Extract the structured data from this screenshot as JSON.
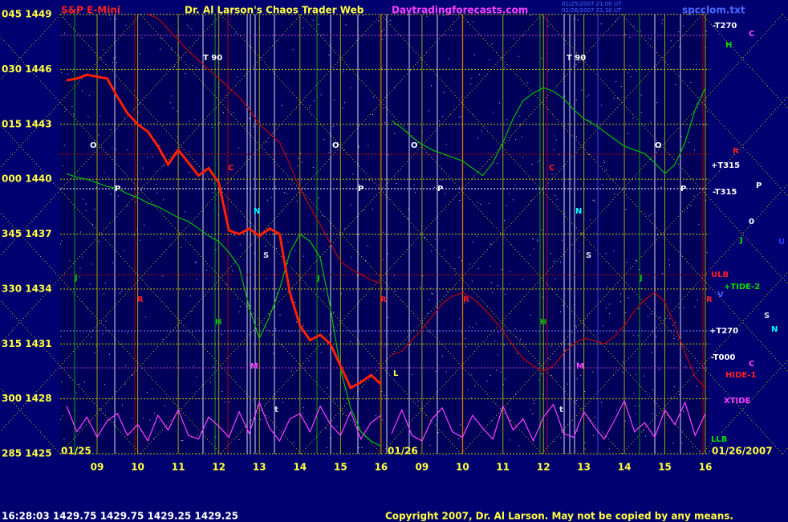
{
  "header": {
    "title": "Dr. Al Larson's Chaos Trader Web",
    "site": "Daytradingforecasts.com",
    "file": "spcclom.txt",
    "stamps": [
      "01/25/2007 21:00 UT",
      "01/26/2007 21:30 UT"
    ]
  },
  "status": "16:28:03  1429.75  1429.75  1429.25  1429.25",
  "copyright": "Copyright 2007, Dr. Al Larson. May not be copied by any means.",
  "right_labels": [
    "-T270",
    "C",
    "H",
    "R",
    "+T315",
    "-T315",
    "P",
    "0",
    "J",
    "U",
    "ULB",
    "+TIDE-2",
    "V",
    "S",
    "N",
    "+T270",
    "-T000",
    "C",
    "HIDE-1",
    "XTIDE",
    "LLB"
  ],
  "chart_data": [
    {
      "type": "line",
      "title": "S&P E-Mini",
      "date": "01/25",
      "x": [
        8.25,
        8.5,
        8.75,
        9,
        9.25,
        9.5,
        9.75,
        10,
        10.25,
        10.5,
        10.75,
        11,
        11.25,
        11.5,
        11.75,
        12,
        12.25,
        12.5,
        12.75,
        13,
        13.25,
        13.5,
        13.75,
        14,
        14.25,
        14.5,
        14.75,
        15,
        15.25,
        15.5,
        15.75,
        16
      ],
      "xlim": [
        8.09,
        16.14
      ],
      "xticks": [
        {
          "value": 9,
          "label": "09"
        },
        10,
        11,
        12,
        13,
        14,
        15,
        16
      ],
      "ylim": [
        1425,
        1449
      ],
      "yticks": [
        {
          "value": 1425,
          "label": "285 1425"
        },
        {
          "value": 1428,
          "label": "300 1428"
        },
        {
          "value": 1431,
          "label": "315 1431"
        },
        {
          "value": 1434,
          "label": "330 1434"
        },
        {
          "value": 1437,
          "label": "345 1437"
        },
        {
          "value": 1440,
          "label": "000 1440"
        },
        {
          "value": 1443,
          "label": "015 1443"
        },
        {
          "value": 1446,
          "label": "030 1446"
        },
        {
          "value": 1449,
          "label": "045 1449"
        }
      ],
      "grid": true,
      "annotations": [
        "T 90",
        "O",
        "P",
        "C",
        "N",
        "S",
        "J",
        "R",
        "H",
        "M",
        "t",
        "J",
        "O",
        "P",
        "R"
      ],
      "series": [
        {
          "color": "#00c000",
          "values": [
            1440.3,
            1440.1,
            1440.0,
            1439.8,
            1439.6,
            1439.5,
            1439.2,
            1439.0,
            1438.7,
            1438.5,
            1438.2,
            1437.9,
            1437.7,
            1437.3,
            1436.9,
            1436.6,
            1436.0,
            1435.2,
            1433.0,
            1431.3,
            1432.5,
            1434.0,
            1436.0,
            1437.0,
            1436.6,
            1435.7,
            1433.0,
            1429.6,
            1427.5,
            1426.2,
            1425.7,
            1425.4
          ]
        },
        {
          "color": "#c00000",
          "values": [
            null,
            null,
            null,
            null,
            null,
            null,
            null,
            null,
            1449.0,
            1448.8,
            1448.2,
            1447.6,
            1447.0,
            1446.5,
            1446.0,
            1445.5,
            1445.0,
            1444.5,
            1443.8,
            1443.0,
            1442.5,
            1442.0,
            1440.8,
            1439.5,
            1438.5,
            1437.5,
            1436.5,
            1435.5,
            1435.1,
            1434.8,
            1434.5,
            1434.3
          ]
        },
        {
          "color": "#ff40ff",
          "values": [
            1427.6,
            1426.2,
            1427.0,
            1425.9,
            1426.8,
            1427.2,
            1426.0,
            1426.6,
            1425.7,
            1427.1,
            1426.3,
            1427.4,
            1426.0,
            1425.8,
            1427.0,
            1426.5,
            1425.9,
            1427.3,
            1426.1,
            1427.8,
            1426.4,
            1425.7,
            1426.9,
            1427.2,
            1426.2,
            1427.6,
            1426.6,
            1426.0,
            1427.3,
            1425.8,
            1426.7,
            1427.1
          ]
        },
        {
          "color": "#ff2000",
          "values": [
            1445.4,
            1445.5,
            1445.7,
            1445.6,
            1445.5,
            1444.5,
            1443.6,
            1443.0,
            1442.6,
            1441.8,
            1440.8,
            1441.6,
            1440.9,
            1440.2,
            1440.6,
            1439.8,
            1437.2,
            1437.0,
            1437.3,
            1436.9,
            1437.3,
            1437.0,
            1433.8,
            1432.0,
            1431.2,
            1431.5,
            1431.0,
            1429.8,
            1428.6,
            1428.9,
            1429.3,
            1428.8
          ]
        }
      ]
    },
    {
      "type": "line",
      "date": "01/26",
      "full_date": "01/26/2007",
      "x": [
        8.25,
        8.5,
        8.75,
        9,
        9.25,
        9.5,
        9.75,
        10,
        10.25,
        10.5,
        10.75,
        11,
        11.25,
        11.5,
        11.75,
        12,
        12.25,
        12.5,
        12.75,
        13,
        13.25,
        13.5,
        13.75,
        14,
        14.25,
        14.5,
        14.75,
        15,
        15.25,
        15.5,
        15.75,
        16
      ],
      "xlim": [
        8.13,
        16.1
      ],
      "xticks": [
        {
          "value": 9,
          "label": "09"
        },
        10,
        11,
        12,
        13,
        14,
        15,
        16
      ],
      "ylim": [
        1425,
        1449
      ],
      "grid": true,
      "annotations": [
        "T 90",
        "O",
        "P",
        "C",
        "N",
        "S",
        "R",
        "H",
        "M",
        "t",
        "J",
        "O",
        "P",
        "R",
        "L"
      ],
      "series": [
        {
          "color": "#00c000",
          "values": [
            1443.2,
            1442.8,
            1442.3,
            1441.9,
            1441.6,
            1441.4,
            1441.2,
            1441.0,
            1440.6,
            1440.2,
            1440.9,
            1442.0,
            1443.3,
            1444.3,
            1444.7,
            1445.0,
            1444.8,
            1444.4,
            1443.8,
            1443.3,
            1443.0,
            1442.6,
            1442.2,
            1441.8,
            1441.6,
            1441.4,
            1440.9,
            1440.3,
            1440.8,
            1442.0,
            1443.8,
            1445.0
          ]
        },
        {
          "color": "#c00000",
          "values": [
            1430.4,
            1430.6,
            1431.2,
            1431.8,
            1432.5,
            1433.2,
            1433.6,
            1433.8,
            1433.5,
            1433.0,
            1432.4,
            1431.7,
            1430.9,
            1430.2,
            1429.8,
            1429.5,
            1429.8,
            1430.5,
            1431.0,
            1431.3,
            1431.2,
            1431.0,
            1431.4,
            1432.0,
            1432.8,
            1433.4,
            1433.8,
            1433.3,
            1432.0,
            1430.5,
            1429.2,
            1428.6
          ]
        },
        {
          "color": "#ff40ff",
          "values": [
            1426.1,
            1427.4,
            1426.0,
            1425.7,
            1426.9,
            1427.5,
            1426.2,
            1425.9,
            1427.1,
            1426.4,
            1425.8,
            1427.6,
            1426.3,
            1426.9,
            1425.7,
            1427.0,
            1427.7,
            1426.1,
            1425.9,
            1427.3,
            1426.5,
            1425.8,
            1426.8,
            1427.9,
            1426.2,
            1426.7,
            1425.9,
            1427.4,
            1426.6,
            1427.8,
            1426.0,
            1427.2
          ]
        }
      ]
    }
  ]
}
